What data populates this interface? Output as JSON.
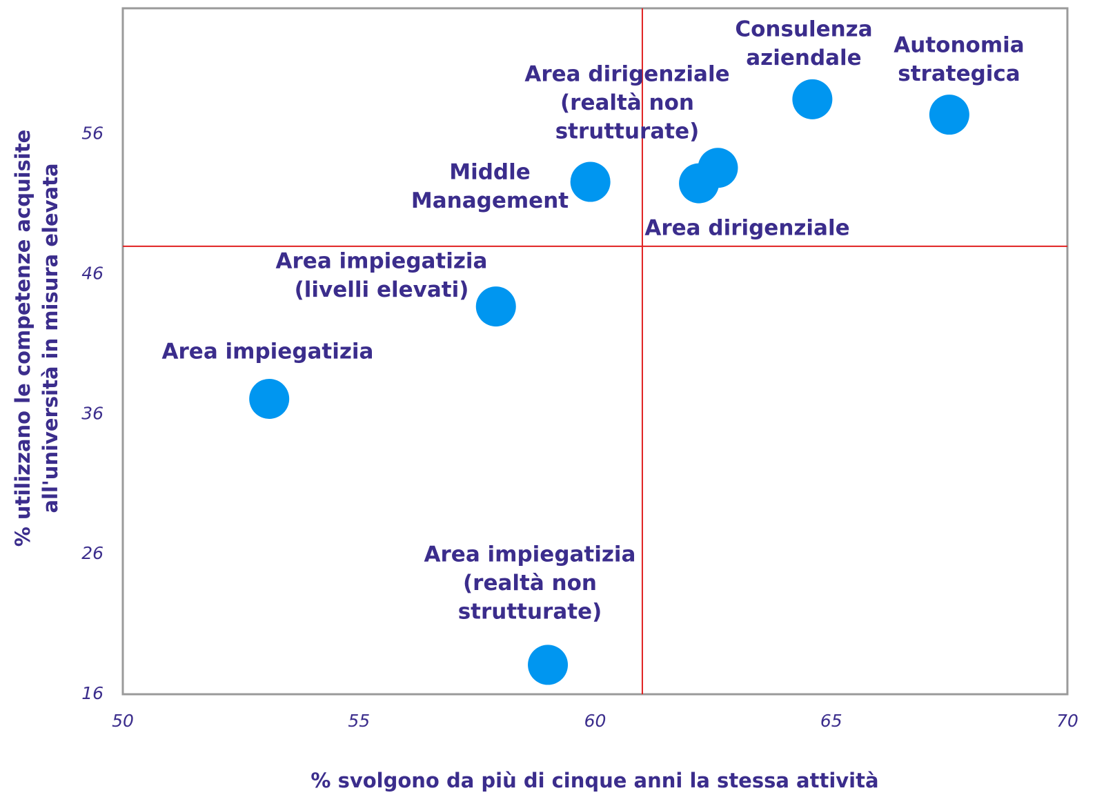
{
  "chart_data": {
    "type": "scatter",
    "xlabel": "% svolgono da più di cinque anni la stessa attività",
    "ylabel": [
      "% utilizzano le competenze acquisite",
      "all'università in misura elevata"
    ],
    "x": [
      67.5,
      64.6,
      62.6,
      62.2,
      59.9,
      57.9,
      53.1,
      59.0
    ],
    "values": [
      57.4,
      58.5,
      53.6,
      52.5,
      52.6,
      43.7,
      37.1,
      18.1
    ],
    "labels": [
      [
        "Autonomia",
        "strategica"
      ],
      [
        "Consulenza",
        "aziendale"
      ],
      [
        "Area dirigenziale",
        "(realtà non",
        "strutturate)"
      ],
      [
        "Area dirigenziale"
      ],
      [
        "Middle",
        "Management"
      ],
      [
        "Area impiegatizia",
        "(livelli elevati)"
      ],
      [
        "Area impiegatizia"
      ],
      [
        "Area impiegatizia",
        "(realtà non",
        "strutturate)"
      ]
    ],
    "color": "#0096f0",
    "reference_lines": {
      "x": 61.0,
      "y": 48.0,
      "color": "#e02020"
    },
    "xlim": [
      50,
      70
    ],
    "xticks": [
      50,
      55,
      60,
      65,
      70
    ],
    "ylim": [
      16,
      65
    ],
    "yticks": [
      16,
      26,
      36,
      46,
      56
    ]
  }
}
